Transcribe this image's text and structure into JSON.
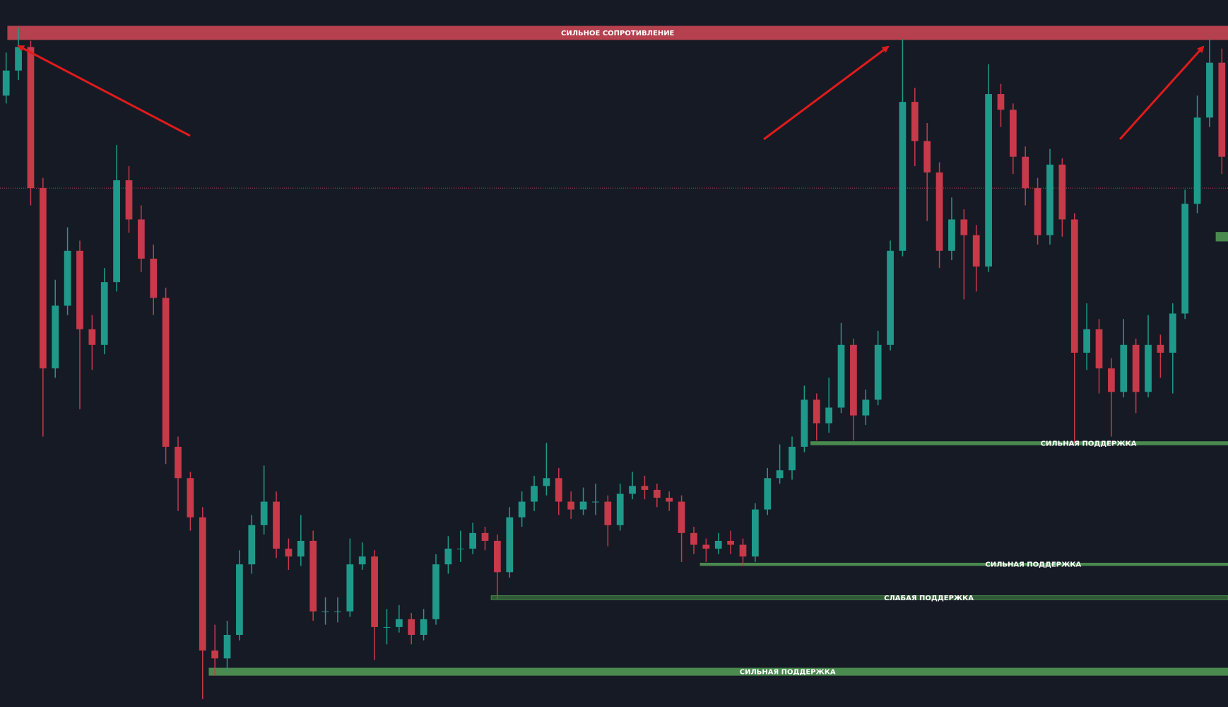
{
  "chart_data": {
    "type": "candlestick",
    "ylim": [
      0,
      902
    ],
    "up_color": "#1f9a8a",
    "down_color": "#c8394a",
    "price_line": 662,
    "price_line_color": "#b5404e",
    "ohlc": [
      [
        780,
        835,
        770,
        812
      ],
      [
        812,
        867,
        800,
        842
      ],
      [
        842,
        850,
        640,
        662
      ],
      [
        662,
        675,
        345,
        432
      ],
      [
        432,
        545,
        420,
        512
      ],
      [
        512,
        612,
        500,
        582
      ],
      [
        582,
        595,
        380,
        482
      ],
      [
        482,
        500,
        430,
        462
      ],
      [
        462,
        560,
        450,
        542
      ],
      [
        542,
        717,
        530,
        672
      ],
      [
        672,
        690,
        605,
        622
      ],
      [
        622,
        640,
        555,
        572
      ],
      [
        572,
        590,
        500,
        522
      ],
      [
        522,
        535,
        310,
        332
      ],
      [
        332,
        345,
        250,
        292
      ],
      [
        292,
        300,
        225,
        242
      ],
      [
        242,
        255,
        10,
        72
      ],
      [
        72,
        105,
        40,
        62
      ],
      [
        62,
        110,
        45,
        92
      ],
      [
        92,
        200,
        85,
        182
      ],
      [
        182,
        245,
        170,
        232
      ],
      [
        232,
        308,
        220,
        262
      ],
      [
        262,
        275,
        190,
        202
      ],
      [
        202,
        215,
        175,
        192
      ],
      [
        192,
        245,
        180,
        212
      ],
      [
        212,
        225,
        110,
        122
      ],
      [
        122,
        140,
        105,
        122
      ],
      [
        122,
        140,
        108,
        122
      ],
      [
        122,
        215,
        115,
        182
      ],
      [
        182,
        210,
        175,
        192
      ],
      [
        192,
        200,
        60,
        102
      ],
      [
        102,
        125,
        80,
        102
      ],
      [
        102,
        130,
        95,
        112
      ],
      [
        112,
        120,
        80,
        92
      ],
      [
        92,
        125,
        85,
        112
      ],
      [
        112,
        195,
        105,
        182
      ],
      [
        182,
        218,
        170,
        202
      ],
      [
        202,
        225,
        185,
        202
      ],
      [
        202,
        235,
        195,
        222
      ],
      [
        222,
        230,
        200,
        212
      ],
      [
        212,
        220,
        137,
        172
      ],
      [
        172,
        255,
        165,
        242
      ],
      [
        242,
        275,
        230,
        262
      ],
      [
        262,
        295,
        250,
        282
      ],
      [
        282,
        337,
        270,
        292
      ],
      [
        292,
        305,
        245,
        262
      ],
      [
        262,
        275,
        240,
        252
      ],
      [
        252,
        280,
        245,
        262
      ],
      [
        262,
        285,
        245,
        262
      ],
      [
        262,
        270,
        205,
        232
      ],
      [
        232,
        285,
        225,
        272
      ],
      [
        272,
        300,
        265,
        282
      ],
      [
        282,
        295,
        265,
        277
      ],
      [
        277,
        285,
        255,
        267
      ],
      [
        267,
        275,
        250,
        262
      ],
      [
        262,
        270,
        185,
        222
      ],
      [
        222,
        230,
        195,
        207
      ],
      [
        207,
        215,
        185,
        202
      ],
      [
        202,
        222,
        195,
        212
      ],
      [
        212,
        225,
        195,
        207
      ],
      [
        207,
        215,
        180,
        192
      ],
      [
        192,
        260,
        185,
        252
      ],
      [
        252,
        305,
        245,
        292
      ],
      [
        292,
        335,
        285,
        302
      ],
      [
        302,
        345,
        290,
        332
      ],
      [
        332,
        410,
        325,
        392
      ],
      [
        392,
        400,
        340,
        362
      ],
      [
        362,
        420,
        350,
        382
      ],
      [
        382,
        490,
        375,
        462
      ],
      [
        462,
        470,
        340,
        372
      ],
      [
        372,
        405,
        360,
        392
      ],
      [
        392,
        480,
        385,
        462
      ],
      [
        462,
        595,
        455,
        582
      ],
      [
        582,
        852,
        575,
        772
      ],
      [
        772,
        790,
        690,
        722
      ],
      [
        722,
        745,
        620,
        682
      ],
      [
        682,
        695,
        560,
        582
      ],
      [
        582,
        650,
        570,
        622
      ],
      [
        622,
        635,
        520,
        602
      ],
      [
        602,
        615,
        530,
        562
      ],
      [
        562,
        820,
        555,
        782
      ],
      [
        782,
        795,
        740,
        762
      ],
      [
        762,
        770,
        680,
        702
      ],
      [
        702,
        715,
        640,
        662
      ],
      [
        662,
        675,
        590,
        602
      ],
      [
        602,
        712,
        590,
        692
      ],
      [
        692,
        700,
        600,
        622
      ],
      [
        622,
        630,
        337,
        452
      ],
      [
        452,
        515,
        430,
        482
      ],
      [
        482,
        495,
        400,
        432
      ],
      [
        432,
        445,
        345,
        402
      ],
      [
        402,
        495,
        395,
        462
      ],
      [
        462,
        470,
        375,
        402
      ],
      [
        402,
        500,
        395,
        462
      ],
      [
        462,
        475,
        420,
        452
      ],
      [
        452,
        515,
        400,
        502
      ],
      [
        502,
        660,
        495,
        642
      ],
      [
        642,
        780,
        630,
        752
      ],
      [
        752,
        852,
        740,
        822
      ],
      [
        822,
        840,
        680,
        702
      ]
    ],
    "zones": [
      {
        "label": "СИЛЬНОЕ СОПРОТИВЛЕНИЕ",
        "top": 869,
        "bottom": 851,
        "from": 0,
        "color": "#b5404e"
      },
      {
        "label": "СИЛЬНАЯ ПОДДЕРЖКА",
        "top": 339,
        "bottom": 334,
        "from": 66,
        "color": "#4a8a4f"
      },
      {
        "label": "СИЛЬНАЯ ПОДДЕРЖКА",
        "top": 184,
        "bottom": 180,
        "from": 57,
        "color": "#4a8a4f"
      },
      {
        "label": "СЛАБАЯ ПОДДЕРЖКА",
        "top": 142,
        "bottom": 137,
        "from": 40,
        "color": "#2f5a35"
      },
      {
        "label": "СИЛЬНАЯ ПОДДЕРЖКА",
        "top": 50,
        "bottom": 40,
        "from": 17,
        "color": "#4a8a4f"
      },
      {
        "top": 606,
        "bottom": 594,
        "from": 99,
        "color": "#4a8a4f"
      }
    ]
  }
}
